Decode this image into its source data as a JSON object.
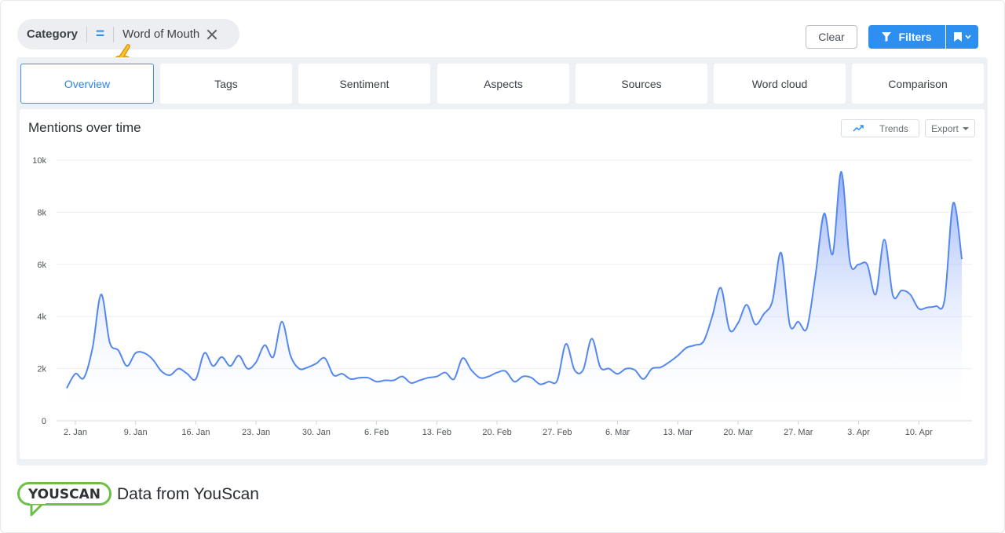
{
  "filter": {
    "label": "Category",
    "operator": "=",
    "value": "Word of Mouth"
  },
  "toolbar": {
    "clear_label": "Clear",
    "filters_label": "Filters"
  },
  "tabs": [
    {
      "label": "Overview",
      "active": true
    },
    {
      "label": "Tags"
    },
    {
      "label": "Sentiment"
    },
    {
      "label": "Aspects"
    },
    {
      "label": "Sources"
    },
    {
      "label": "Word cloud"
    },
    {
      "label": "Comparison"
    }
  ],
  "card": {
    "title": "Mentions over time",
    "trends_label": "Trends",
    "export_label": "Export"
  },
  "footer": {
    "logo_text": "YOUSCAN",
    "text": "Data from YouScan"
  },
  "colors": {
    "accent": "#2d8ff0",
    "line": "#5588ee",
    "logo_green": "#6cc04a"
  },
  "chart_data": {
    "type": "area",
    "ylim": [
      0,
      10000
    ],
    "y_ticks": [
      "0",
      "2k",
      "4k",
      "6k",
      "8k",
      "10k"
    ],
    "x_tick_labels": [
      "2. Jan",
      "9. Jan",
      "16. Jan",
      "23. Jan",
      "30. Jan",
      "6. Feb",
      "13. Feb",
      "20. Feb",
      "27. Feb",
      "6. Mar",
      "13. Mar",
      "20. Mar",
      "27. Mar",
      "3. Apr",
      "10. Apr"
    ],
    "x_start": "2023-01-01",
    "series": [
      {
        "values": [
          1250,
          1800,
          1650,
          2800,
          4850,
          3000,
          2700,
          2100,
          2600,
          2600,
          2350,
          1900,
          1750,
          2000,
          1800,
          1600,
          2600,
          2100,
          2450,
          2100,
          2500,
          2000,
          2250,
          2900,
          2450,
          3800,
          2500,
          2000,
          2050,
          2200,
          2400,
          1750,
          1800,
          1600,
          1650,
          1650,
          1500,
          1550,
          1550,
          1700,
          1450,
          1550,
          1650,
          1700,
          1850,
          1600,
          2400,
          1950,
          1650,
          1700,
          1850,
          1900,
          1500,
          1700,
          1650,
          1400,
          1500,
          1550,
          2950,
          1950,
          1950,
          3150,
          2050,
          2000,
          1800,
          2000,
          1950,
          1600,
          2000,
          2050,
          2250,
          2500,
          2800,
          2900,
          3050,
          4000,
          5100,
          3500,
          3750,
          4450,
          3700,
          4100,
          4600,
          6450,
          3700,
          3800,
          3550,
          5600,
          7950,
          6400,
          9550,
          6100,
          6000,
          6000,
          4850,
          6950,
          4800,
          5000,
          4850,
          4300,
          4350,
          4400,
          4650,
          8350,
          6200
        ]
      }
    ]
  }
}
